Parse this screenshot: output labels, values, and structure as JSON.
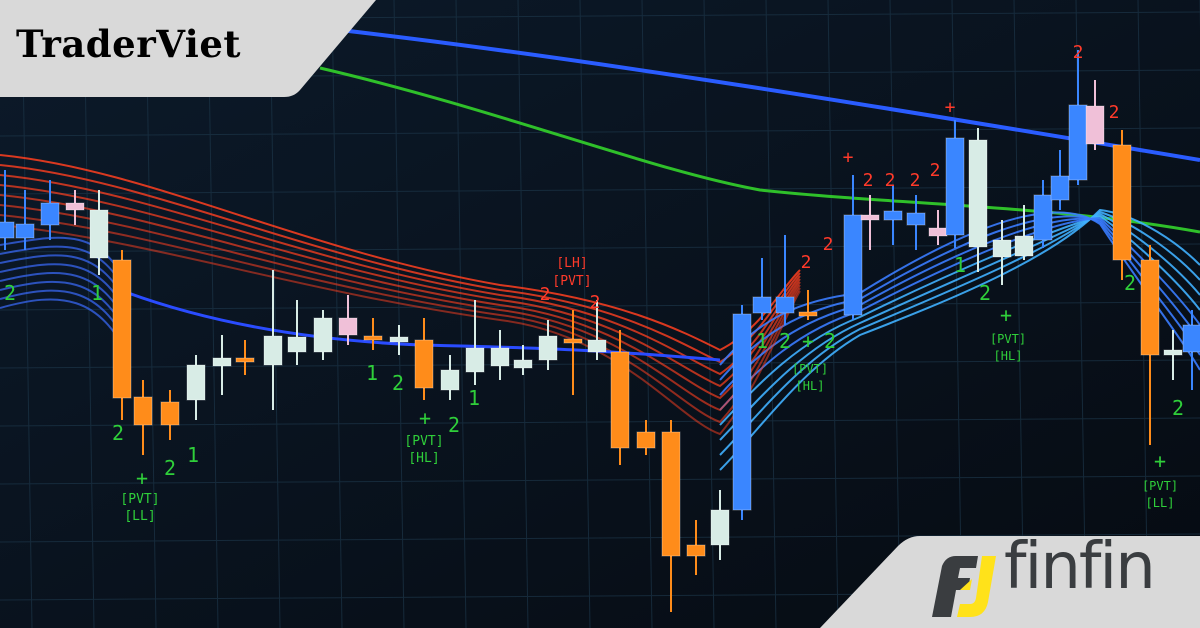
{
  "brand": {
    "top_left": "TraderViet",
    "bottom_right": "finfin"
  },
  "colors": {
    "background": "#0a1018",
    "bull": "#3a86ff",
    "bear": "#ff8c1a",
    "neutral": "#d8ece6",
    "ma_blue": "#2a5cff",
    "ma_green": "#2fc02a",
    "ribbon_red": "#ff4020",
    "ribbon_blue": "#40b0ff",
    "label_green": "#2fcf3a",
    "label_red": "#ff3a2a",
    "badge_bg": "#d9d9d9",
    "logo_yellow": "#ffe21a",
    "logo_dark": "#3a3d40"
  },
  "annotations": {
    "pvt_ll": [
      "[PVT]",
      "[LL]"
    ],
    "pvt_hl_1": [
      "[PVT]",
      "[HL]"
    ],
    "pvt_hl_2": [
      "[PVT]",
      "[HL]"
    ],
    "pvt_hl_3": [
      "[PVT]",
      "[HL]"
    ],
    "pvt_ll_right": [
      "[PVT]",
      "[LL]"
    ],
    "lh_pvt": [
      "[LH]",
      "[PVT]"
    ],
    "one": "1",
    "two": "2",
    "plus": "+"
  }
}
